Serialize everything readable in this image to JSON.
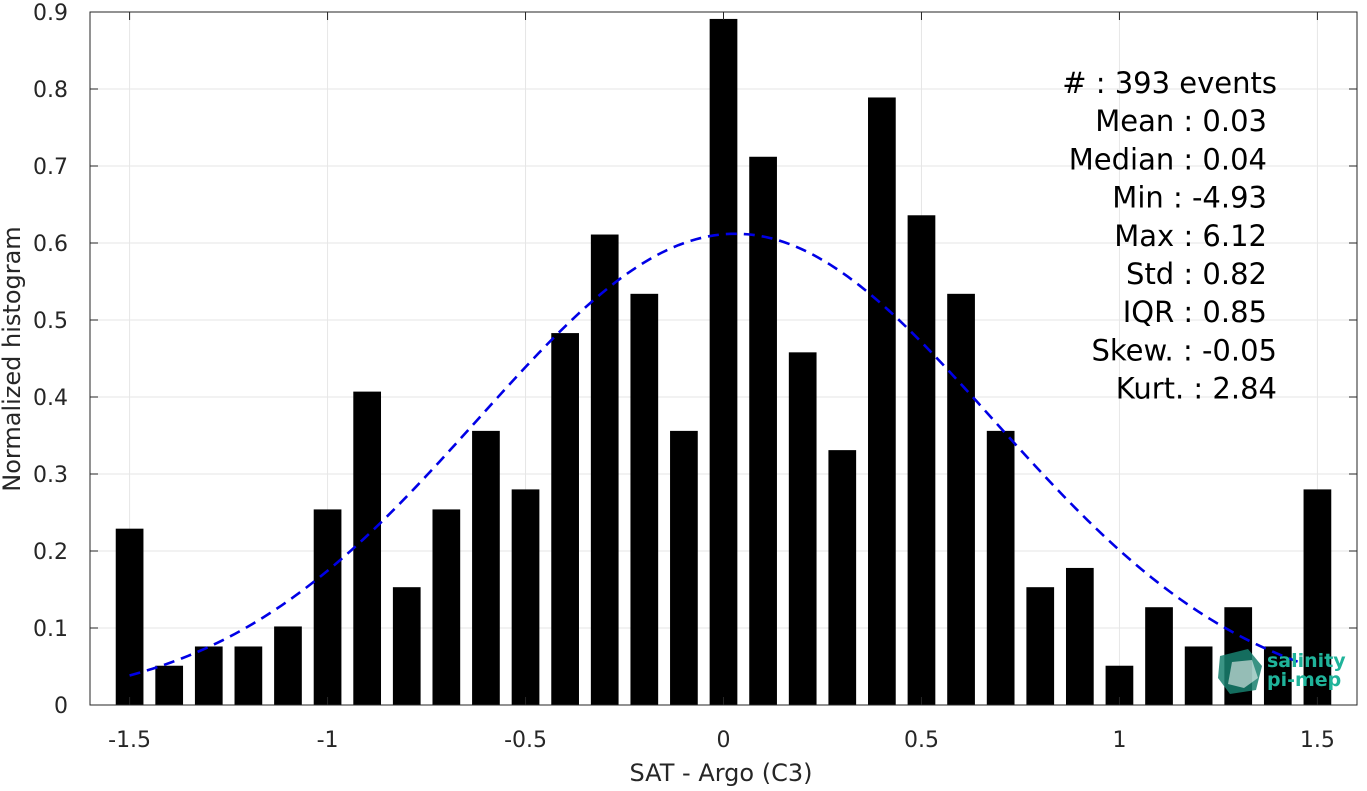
{
  "chart_data": {
    "type": "bar",
    "xlabel": "SAT - Argo (C3)",
    "ylabel": "Normalized histogram",
    "xlim": [
      -1.6,
      1.6
    ],
    "ylim": [
      0,
      0.9
    ],
    "grid": true,
    "x_ticks": [
      -1.5,
      -1,
      -0.5,
      0,
      0.5,
      1,
      1.5
    ],
    "x_tick_labels": [
      "-1.5",
      "-1",
      "-0.5",
      "0",
      "0.5",
      "1",
      "1.5"
    ],
    "y_ticks": [
      0,
      0.1,
      0.2,
      0.3,
      0.4,
      0.5,
      0.6,
      0.7,
      0.8,
      0.9
    ],
    "y_tick_labels": [
      "0",
      "0.1",
      "0.2",
      "0.3",
      "0.4",
      "0.5",
      "0.6",
      "0.7",
      "0.8",
      "0.9"
    ],
    "bars": {
      "color": "#000000",
      "x": [
        -1.5,
        -1.4,
        -1.3,
        -1.2,
        -1.1,
        -1.0,
        -0.9,
        -0.8,
        -0.7,
        -0.6,
        -0.5,
        -0.4,
        -0.3,
        -0.2,
        -0.1,
        0.0,
        0.1,
        0.2,
        0.3,
        0.4,
        0.5,
        0.6,
        0.7,
        0.8,
        0.9,
        1.0,
        1.1,
        1.2,
        1.3,
        1.4,
        1.5
      ],
      "values": [
        0.229,
        0.051,
        0.076,
        0.076,
        0.102,
        0.254,
        0.407,
        0.153,
        0.254,
        0.356,
        0.28,
        0.483,
        0.611,
        0.534,
        0.356,
        0.891,
        0.712,
        0.458,
        0.331,
        0.789,
        0.636,
        0.534,
        0.356,
        0.153,
        0.178,
        0.051,
        0.127,
        0.076,
        0.127,
        0.076,
        0.28
      ]
    },
    "fit_curve": {
      "style": "dashed",
      "color": "#0000e6",
      "mean": 0.03,
      "std": 0.65,
      "peak": 0.612,
      "x_range": [
        -1.5,
        1.45
      ]
    },
    "annotations": [
      "#  : 393 events",
      "Mean : 0.03",
      "Median : 0.04",
      "Min : -4.93",
      "Max : 6.12",
      "Std : 0.82",
      "IQR : 0.85",
      "Skew. : -0.05",
      "Kurt. : 2.84"
    ]
  },
  "logo": {
    "line1": "salinity",
    "line2": "pi-mep",
    "color_text": "#1fb39a",
    "color_shape": "#17806e"
  }
}
